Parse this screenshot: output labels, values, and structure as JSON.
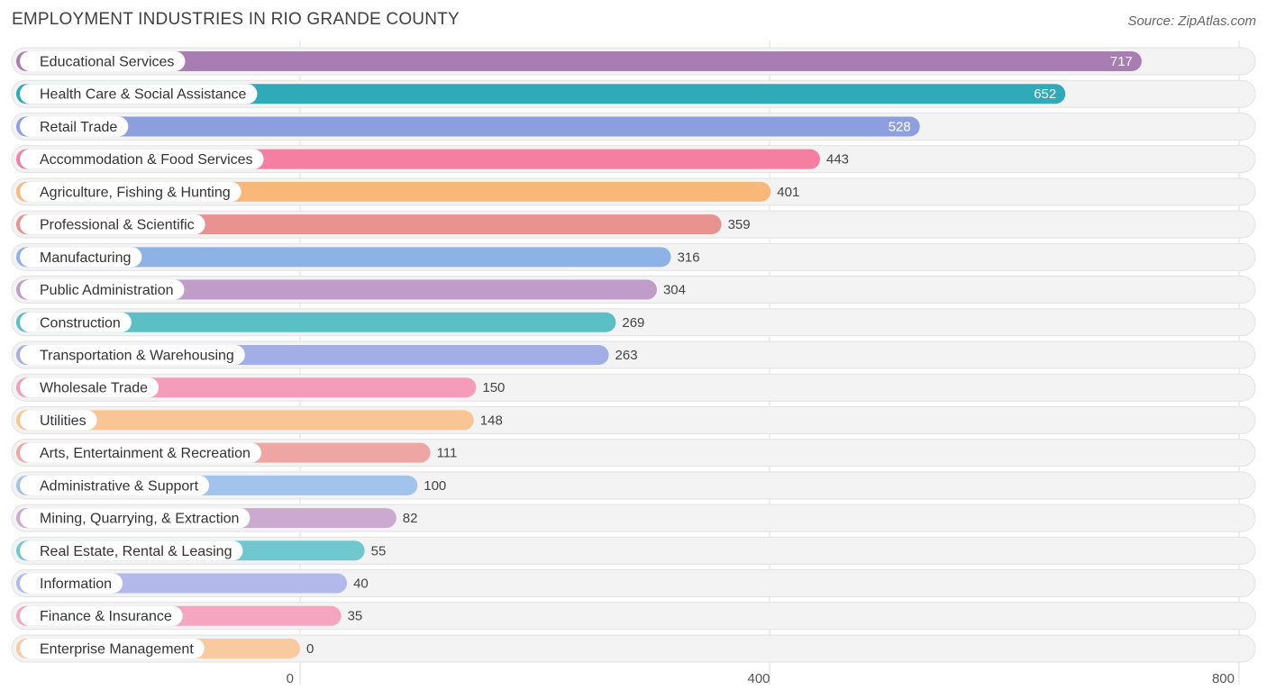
{
  "header": {
    "title": "EMPLOYMENT INDUSTRIES IN RIO GRANDE COUNTY",
    "source": "Source: ZipAtlas.com"
  },
  "chart_data": {
    "type": "bar",
    "orientation": "horizontal",
    "title": "EMPLOYMENT INDUSTRIES IN RIO GRANDE COUNTY",
    "xlabel": "",
    "ylabel": "",
    "xlim": [
      0,
      800
    ],
    "x_ticks": [
      0,
      400,
      800
    ],
    "categories": [
      "Educational Services",
      "Health Care & Social Assistance",
      "Retail Trade",
      "Accommodation & Food Services",
      "Agriculture, Fishing & Hunting",
      "Professional & Scientific",
      "Manufacturing",
      "Public Administration",
      "Construction",
      "Transportation & Warehousing",
      "Wholesale Trade",
      "Utilities",
      "Arts, Entertainment & Recreation",
      "Administrative & Support",
      "Mining, Quarrying, & Extraction",
      "Real Estate, Rental & Leasing",
      "Information",
      "Finance & Insurance",
      "Enterprise Management"
    ],
    "values": [
      717,
      652,
      528,
      443,
      401,
      359,
      316,
      304,
      269,
      263,
      150,
      148,
      111,
      100,
      82,
      55,
      40,
      35,
      0
    ],
    "colors": [
      "#a97db4",
      "#30a9b9",
      "#8e9fe0",
      "#f47fa3",
      "#f9b77a",
      "#e8938f",
      "#8db3e6",
      "#c09cc9",
      "#5bbfc6",
      "#a3aee6",
      "#f59cba",
      "#f9c594",
      "#eea6a4",
      "#a1c3ec",
      "#cba9d1",
      "#72c7cf",
      "#b3b9eb",
      "#f4a6c1",
      "#f9c9a0"
    ]
  }
}
